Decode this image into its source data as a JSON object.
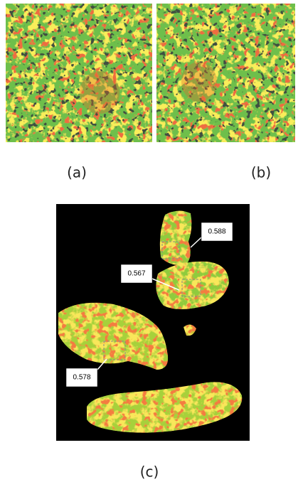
{
  "panels": [
    {
      "label": "(a)"
    },
    {
      "label": "(b)"
    },
    {
      "label": "(c)",
      "annotations": [
        "0.588",
        "0.567",
        "0.578"
      ]
    }
  ]
}
